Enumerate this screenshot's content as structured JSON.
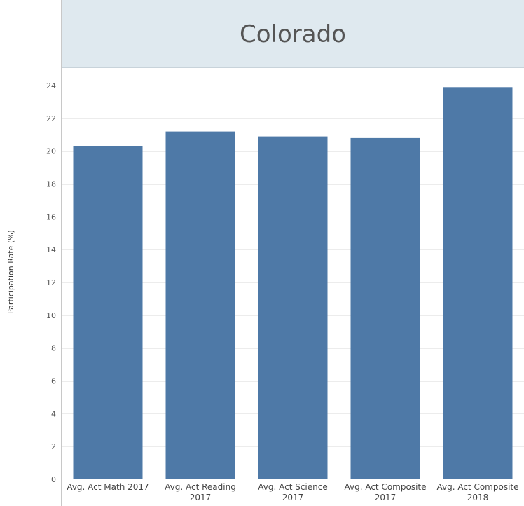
{
  "chart_data": {
    "type": "bar",
    "title": "Colorado",
    "xlabel": "",
    "ylabel": "Participation Rate (%)",
    "ylim": [
      0,
      24
    ],
    "yticks": [
      0,
      2,
      4,
      6,
      8,
      10,
      12,
      14,
      16,
      18,
      20,
      22,
      24
    ],
    "categories": [
      [
        "Avg. Act Math 2017"
      ],
      [
        "Avg. Act Reading",
        "2017"
      ],
      [
        "Avg. Act Science",
        "2017"
      ],
      [
        "Avg. Act Composite",
        "2017"
      ],
      [
        "Avg. Act Composite",
        "2018"
      ]
    ],
    "values": [
      20.3,
      21.2,
      20.9,
      20.8,
      23.9
    ],
    "grid": true,
    "legend": "none"
  },
  "colors": {
    "bar": "#4e79a7",
    "header_bg": "#dfe9ef",
    "gridline": "#ececec",
    "axis": "#c8c8c8"
  }
}
